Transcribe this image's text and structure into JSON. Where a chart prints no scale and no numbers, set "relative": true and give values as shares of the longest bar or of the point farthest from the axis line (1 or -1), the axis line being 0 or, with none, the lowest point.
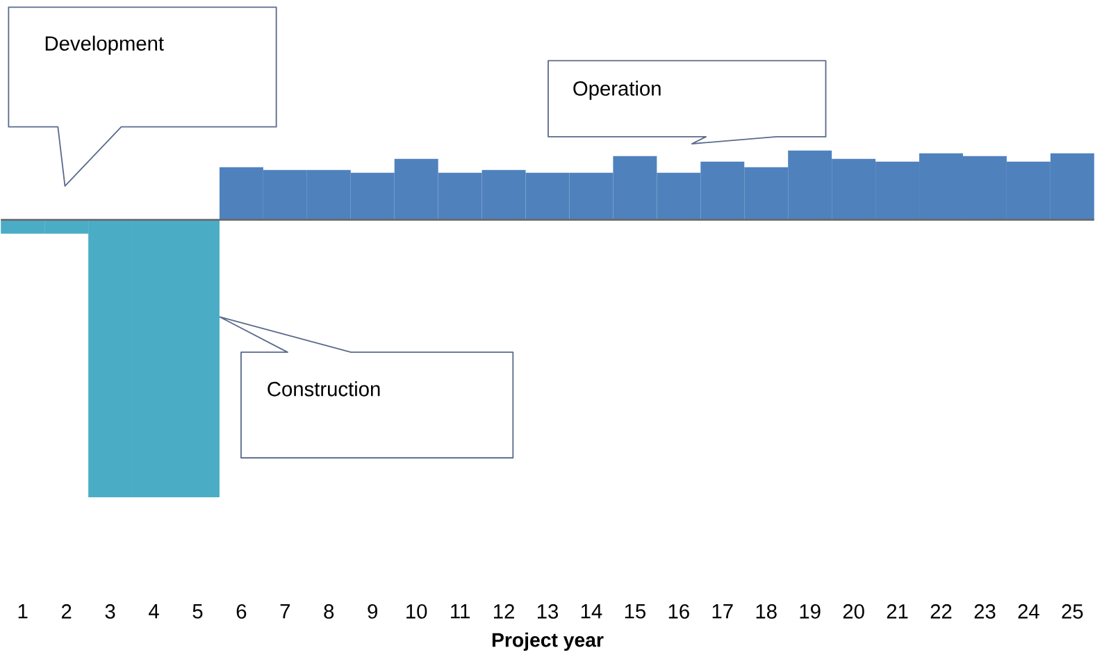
{
  "chart_data": {
    "type": "bar",
    "relative": true,
    "xlabel": "Project year",
    "categories": [
      "1",
      "2",
      "3",
      "4",
      "5",
      "6",
      "7",
      "8",
      "9",
      "10",
      "11",
      "12",
      "13",
      "14",
      "15",
      "16",
      "17",
      "18",
      "19",
      "20",
      "21",
      "22",
      "23",
      "24",
      "25"
    ],
    "values": [
      -0.05,
      -0.05,
      -1,
      -1,
      -1,
      0.19,
      0.18,
      0.18,
      0.17,
      0.22,
      0.17,
      0.18,
      0.17,
      0.17,
      0.23,
      0.17,
      0.21,
      0.19,
      0.25,
      0.22,
      0.21,
      0.24,
      0.23,
      0.21,
      0.24
    ],
    "colors": [
      "#4bacc6",
      "#4bacc6",
      "#4bacc6",
      "#4bacc6",
      "#4bacc6",
      "#4f81bd",
      "#4f81bd",
      "#4f81bd",
      "#4f81bd",
      "#4f81bd",
      "#4f81bd",
      "#4f81bd",
      "#4f81bd",
      "#4f81bd",
      "#4f81bd",
      "#4f81bd",
      "#4f81bd",
      "#4f81bd",
      "#4f81bd",
      "#4f81bd",
      "#4f81bd",
      "#4f81bd",
      "#4f81bd",
      "#4f81bd",
      "#4f81bd"
    ],
    "annotations": [
      "Development",
      "Operation",
      "Construction"
    ]
  }
}
